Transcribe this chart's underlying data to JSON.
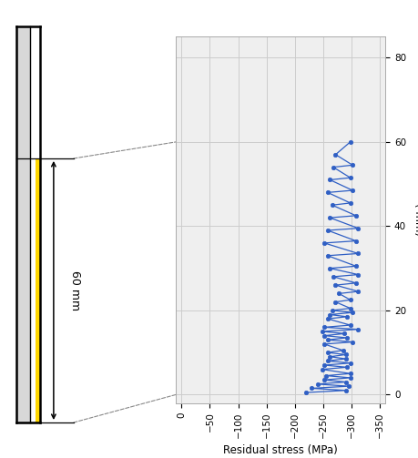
{
  "title": "",
  "xlabel": "Residual stress (MPa)",
  "ylabel": "( mm)",
  "xlim": [
    10,
    -360
  ],
  "ylim": [
    -2,
    85
  ],
  "xticks": [
    0,
    -50,
    -100,
    -150,
    -200,
    -250,
    -300,
    -350
  ],
  "yticks": [
    0,
    20,
    40,
    60,
    80
  ],
  "grid_color": "#cccccc",
  "line_color": "#2f5fc4",
  "marker_color": "#2f5fc4",
  "bg_color": "#efefef",
  "data_x": [
    -220,
    -290,
    -230,
    -295,
    -240,
    -290,
    -252,
    -298,
    -255,
    -298,
    -248,
    -292,
    -252,
    -298,
    -258,
    -290,
    -262,
    -290,
    -258,
    -285,
    -252,
    -302,
    -258,
    -292,
    -252,
    -288,
    -248,
    -312,
    -252,
    -298,
    -258,
    -292,
    -262,
    -302,
    -266,
    -298,
    -272,
    -298,
    -278,
    -312,
    -272,
    -308,
    -268,
    -312,
    -262,
    -308,
    -258,
    -312,
    -252,
    -308,
    -258,
    -312,
    -262,
    -308,
    -266,
    -298,
    -258,
    -302,
    -262,
    -298,
    -268,
    -302,
    -272,
    -298
  ],
  "data_y": [
    0.5,
    1.0,
    1.5,
    2.0,
    2.5,
    3.0,
    3.5,
    4.0,
    4.5,
    5.0,
    6.0,
    6.5,
    7.0,
    7.5,
    8.0,
    8.5,
    9.0,
    9.5,
    10.0,
    10.5,
    12.0,
    12.5,
    13.0,
    13.5,
    14.0,
    14.5,
    15.0,
    15.5,
    16.0,
    16.5,
    18.0,
    18.5,
    19.0,
    19.5,
    20.0,
    20.5,
    22.0,
    22.5,
    24.0,
    24.5,
    26.0,
    26.5,
    28.0,
    28.5,
    30.0,
    30.5,
    33.0,
    33.5,
    36.0,
    36.5,
    39.0,
    39.5,
    42.0,
    42.5,
    45.0,
    45.5,
    48.0,
    48.5,
    51.0,
    51.5,
    54.0,
    54.5,
    57.0,
    60.0
  ],
  "annotation_60mm": "60 mm",
  "dashed_line_color": "#888888"
}
